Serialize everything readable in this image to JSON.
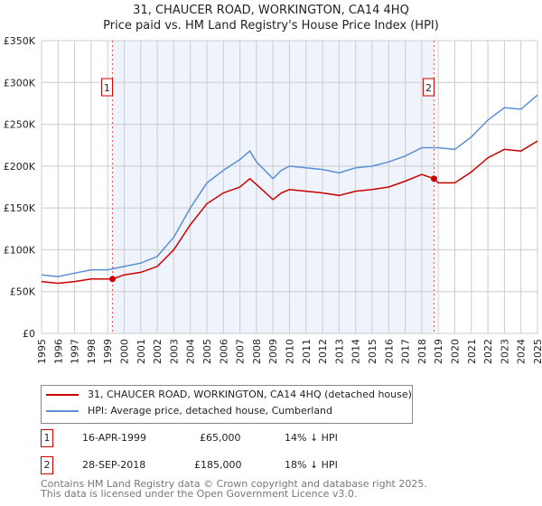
{
  "chart_data": {
    "type": "line",
    "title": "31, CHAUCER ROAD, WORKINGTON, CA14 4HQ",
    "subtitle": "Price paid vs. HM Land Registry's House Price Index (HPI)",
    "xlim": [
      1995,
      2025
    ],
    "ylim": [
      0,
      350000
    ],
    "x_ticks": [
      "1995",
      "1996",
      "1997",
      "1998",
      "1999",
      "2000",
      "2001",
      "2002",
      "2003",
      "2004",
      "2005",
      "2006",
      "2007",
      "2008",
      "2009",
      "2010",
      "2011",
      "2012",
      "2013",
      "2014",
      "2015",
      "2016",
      "2017",
      "2018",
      "2019",
      "2020",
      "2021",
      "2022",
      "2023",
      "2024",
      "2025"
    ],
    "y_ticks": [
      {
        "v": 0,
        "label": "£0"
      },
      {
        "v": 50000,
        "label": "£50K"
      },
      {
        "v": 100000,
        "label": "£100K"
      },
      {
        "v": 150000,
        "label": "£150K"
      },
      {
        "v": 200000,
        "label": "£200K"
      },
      {
        "v": 250000,
        "label": "£250K"
      },
      {
        "v": 300000,
        "label": "£300K"
      },
      {
        "v": 350000,
        "label": "£350K"
      }
    ],
    "grid": true,
    "series": [
      {
        "name": "31, CHAUCER ROAD, WORKINGTON, CA14 4HQ (detached house)",
        "color": "#cc0000",
        "x": [
          1995,
          1996,
          1997,
          1998,
          1999.29,
          2000,
          2001,
          2002,
          2003,
          2004,
          2005,
          2006,
          2007,
          2007.6,
          2008,
          2009,
          2009.5,
          2010,
          2011,
          2012,
          2013,
          2014,
          2015,
          2016,
          2017,
          2018,
          2018.74,
          2019,
          2020,
          2021,
          2022,
          2023,
          2024,
          2025
        ],
        "y": [
          62000,
          60000,
          62000,
          65000,
          65000,
          70000,
          73000,
          80000,
          100000,
          130000,
          155000,
          168000,
          175000,
          185000,
          178000,
          160000,
          168000,
          172000,
          170000,
          168000,
          165000,
          170000,
          172000,
          175000,
          182000,
          190000,
          185000,
          180000,
          180000,
          193000,
          210000,
          220000,
          218000,
          230000
        ]
      },
      {
        "name": "HPI: Average price, detached house, Cumberland",
        "color": "#5b8fd4",
        "x": [
          1995,
          1996,
          1997,
          1998,
          1999,
          2000,
          2001,
          2002,
          2003,
          2004,
          2005,
          2006,
          2007,
          2007.6,
          2008,
          2009,
          2009.5,
          2010,
          2011,
          2012,
          2013,
          2014,
          2015,
          2016,
          2017,
          2018,
          2019,
          2020,
          2021,
          2022,
          2023,
          2024,
          2025
        ],
        "y": [
          70000,
          68000,
          72000,
          76000,
          76000,
          80000,
          84000,
          92000,
          115000,
          150000,
          180000,
          195000,
          208000,
          218000,
          205000,
          185000,
          195000,
          200000,
          198000,
          196000,
          192000,
          198000,
          200000,
          205000,
          212000,
          222000,
          222000,
          220000,
          235000,
          255000,
          270000,
          268000,
          285000
        ]
      }
    ],
    "sales": [
      {
        "n": "1",
        "x": 1999.29,
        "date": "16-APR-1999",
        "price": 65000,
        "price_label": "£65,000",
        "hpi": "14% ↓ HPI"
      },
      {
        "n": "2",
        "x": 2018.74,
        "date": "28-SEP-2018",
        "price": 185000,
        "price_label": "£185,000",
        "hpi": "18% ↓ HPI"
      }
    ],
    "legend": [
      "31, CHAUCER ROAD, WORKINGTON, CA14 4HQ (detached house)",
      "HPI: Average price, detached house, Cumberland"
    ],
    "legend_position": "bottom"
  },
  "footer": [
    "Contains HM Land Registry data © Crown copyright and database right 2025.",
    "This data is licensed under the Open Government Licence v3.0."
  ]
}
